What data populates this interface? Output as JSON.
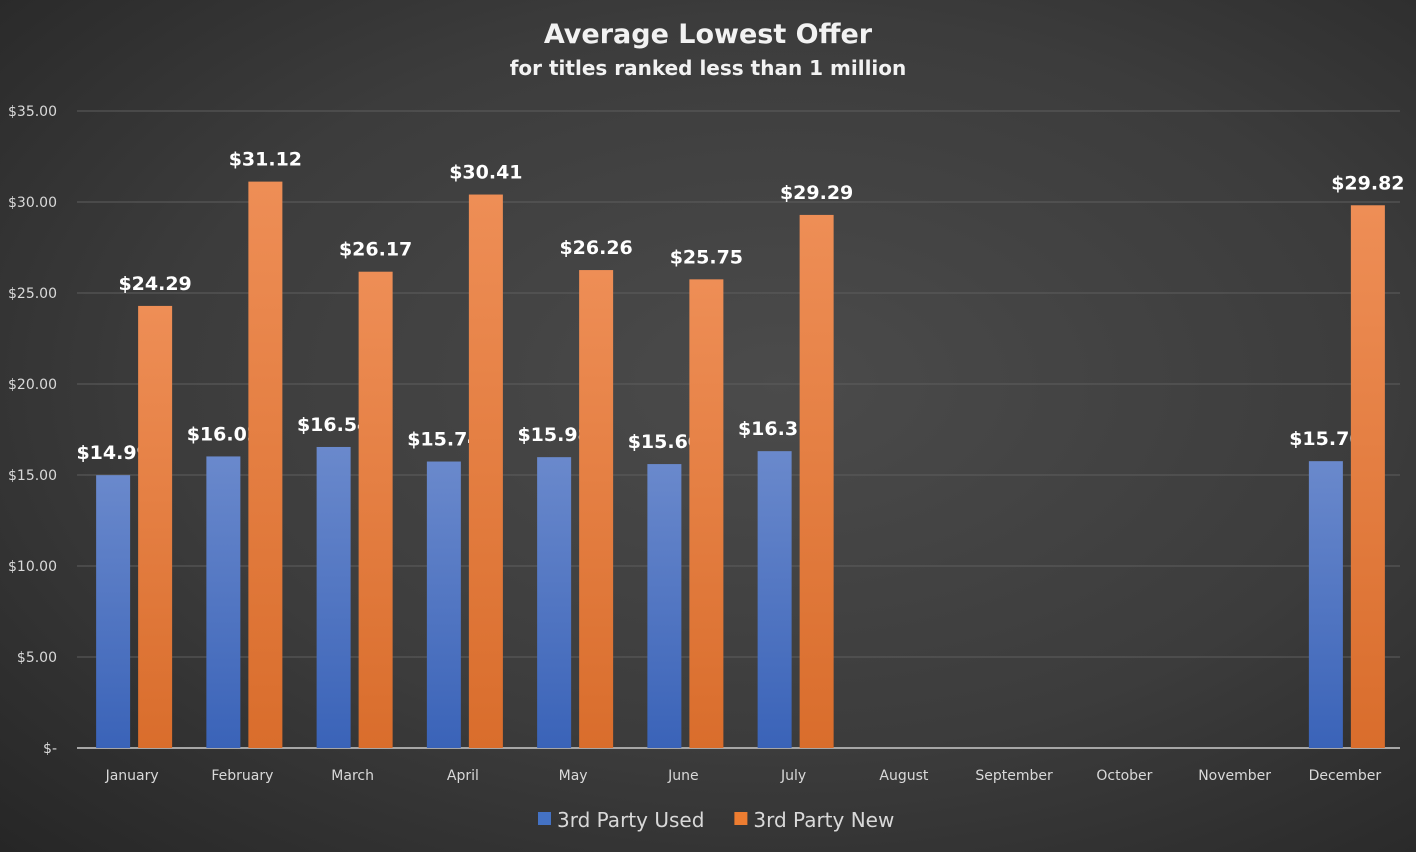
{
  "chart_data": {
    "type": "bar",
    "title": "Average Lowest Offer",
    "subtitle": "for titles ranked less than 1 million",
    "xlabel": "",
    "ylabel": "",
    "ylim": [
      0,
      35
    ],
    "yticks": [
      0,
      5,
      10,
      15,
      20,
      25,
      30,
      35
    ],
    "ytick_labels": [
      "$-",
      "$5.00",
      "$10.00",
      "$15.00",
      "$20.00",
      "$25.00",
      "$30.00",
      "$35.00"
    ],
    "grid": true,
    "legend_position": "bottom",
    "categories": [
      "January",
      "February",
      "March",
      "April",
      "May",
      "June",
      "July",
      "August",
      "September",
      "October",
      "November",
      "December"
    ],
    "series": [
      {
        "name": "3rd Party Used",
        "color": "#4472c4",
        "values": [
          14.99,
          16.02,
          16.54,
          15.74,
          15.98,
          15.6,
          16.31,
          null,
          null,
          null,
          null,
          15.76
        ],
        "labels": [
          "$14.99",
          "$16.02",
          "$16.54",
          "$15.74",
          "$15.98",
          "$15.60",
          "$16.31",
          null,
          null,
          null,
          null,
          "$15.76"
        ]
      },
      {
        "name": "3rd Party New",
        "color": "#ed7d31",
        "values": [
          24.29,
          31.12,
          26.17,
          30.41,
          26.26,
          25.75,
          29.29,
          null,
          null,
          null,
          null,
          29.82
        ],
        "labels": [
          "$24.29",
          "$31.12",
          "$26.17",
          "$30.41",
          "$26.26",
          "$25.75",
          "$29.29",
          null,
          null,
          null,
          null,
          "$29.82"
        ]
      }
    ]
  }
}
